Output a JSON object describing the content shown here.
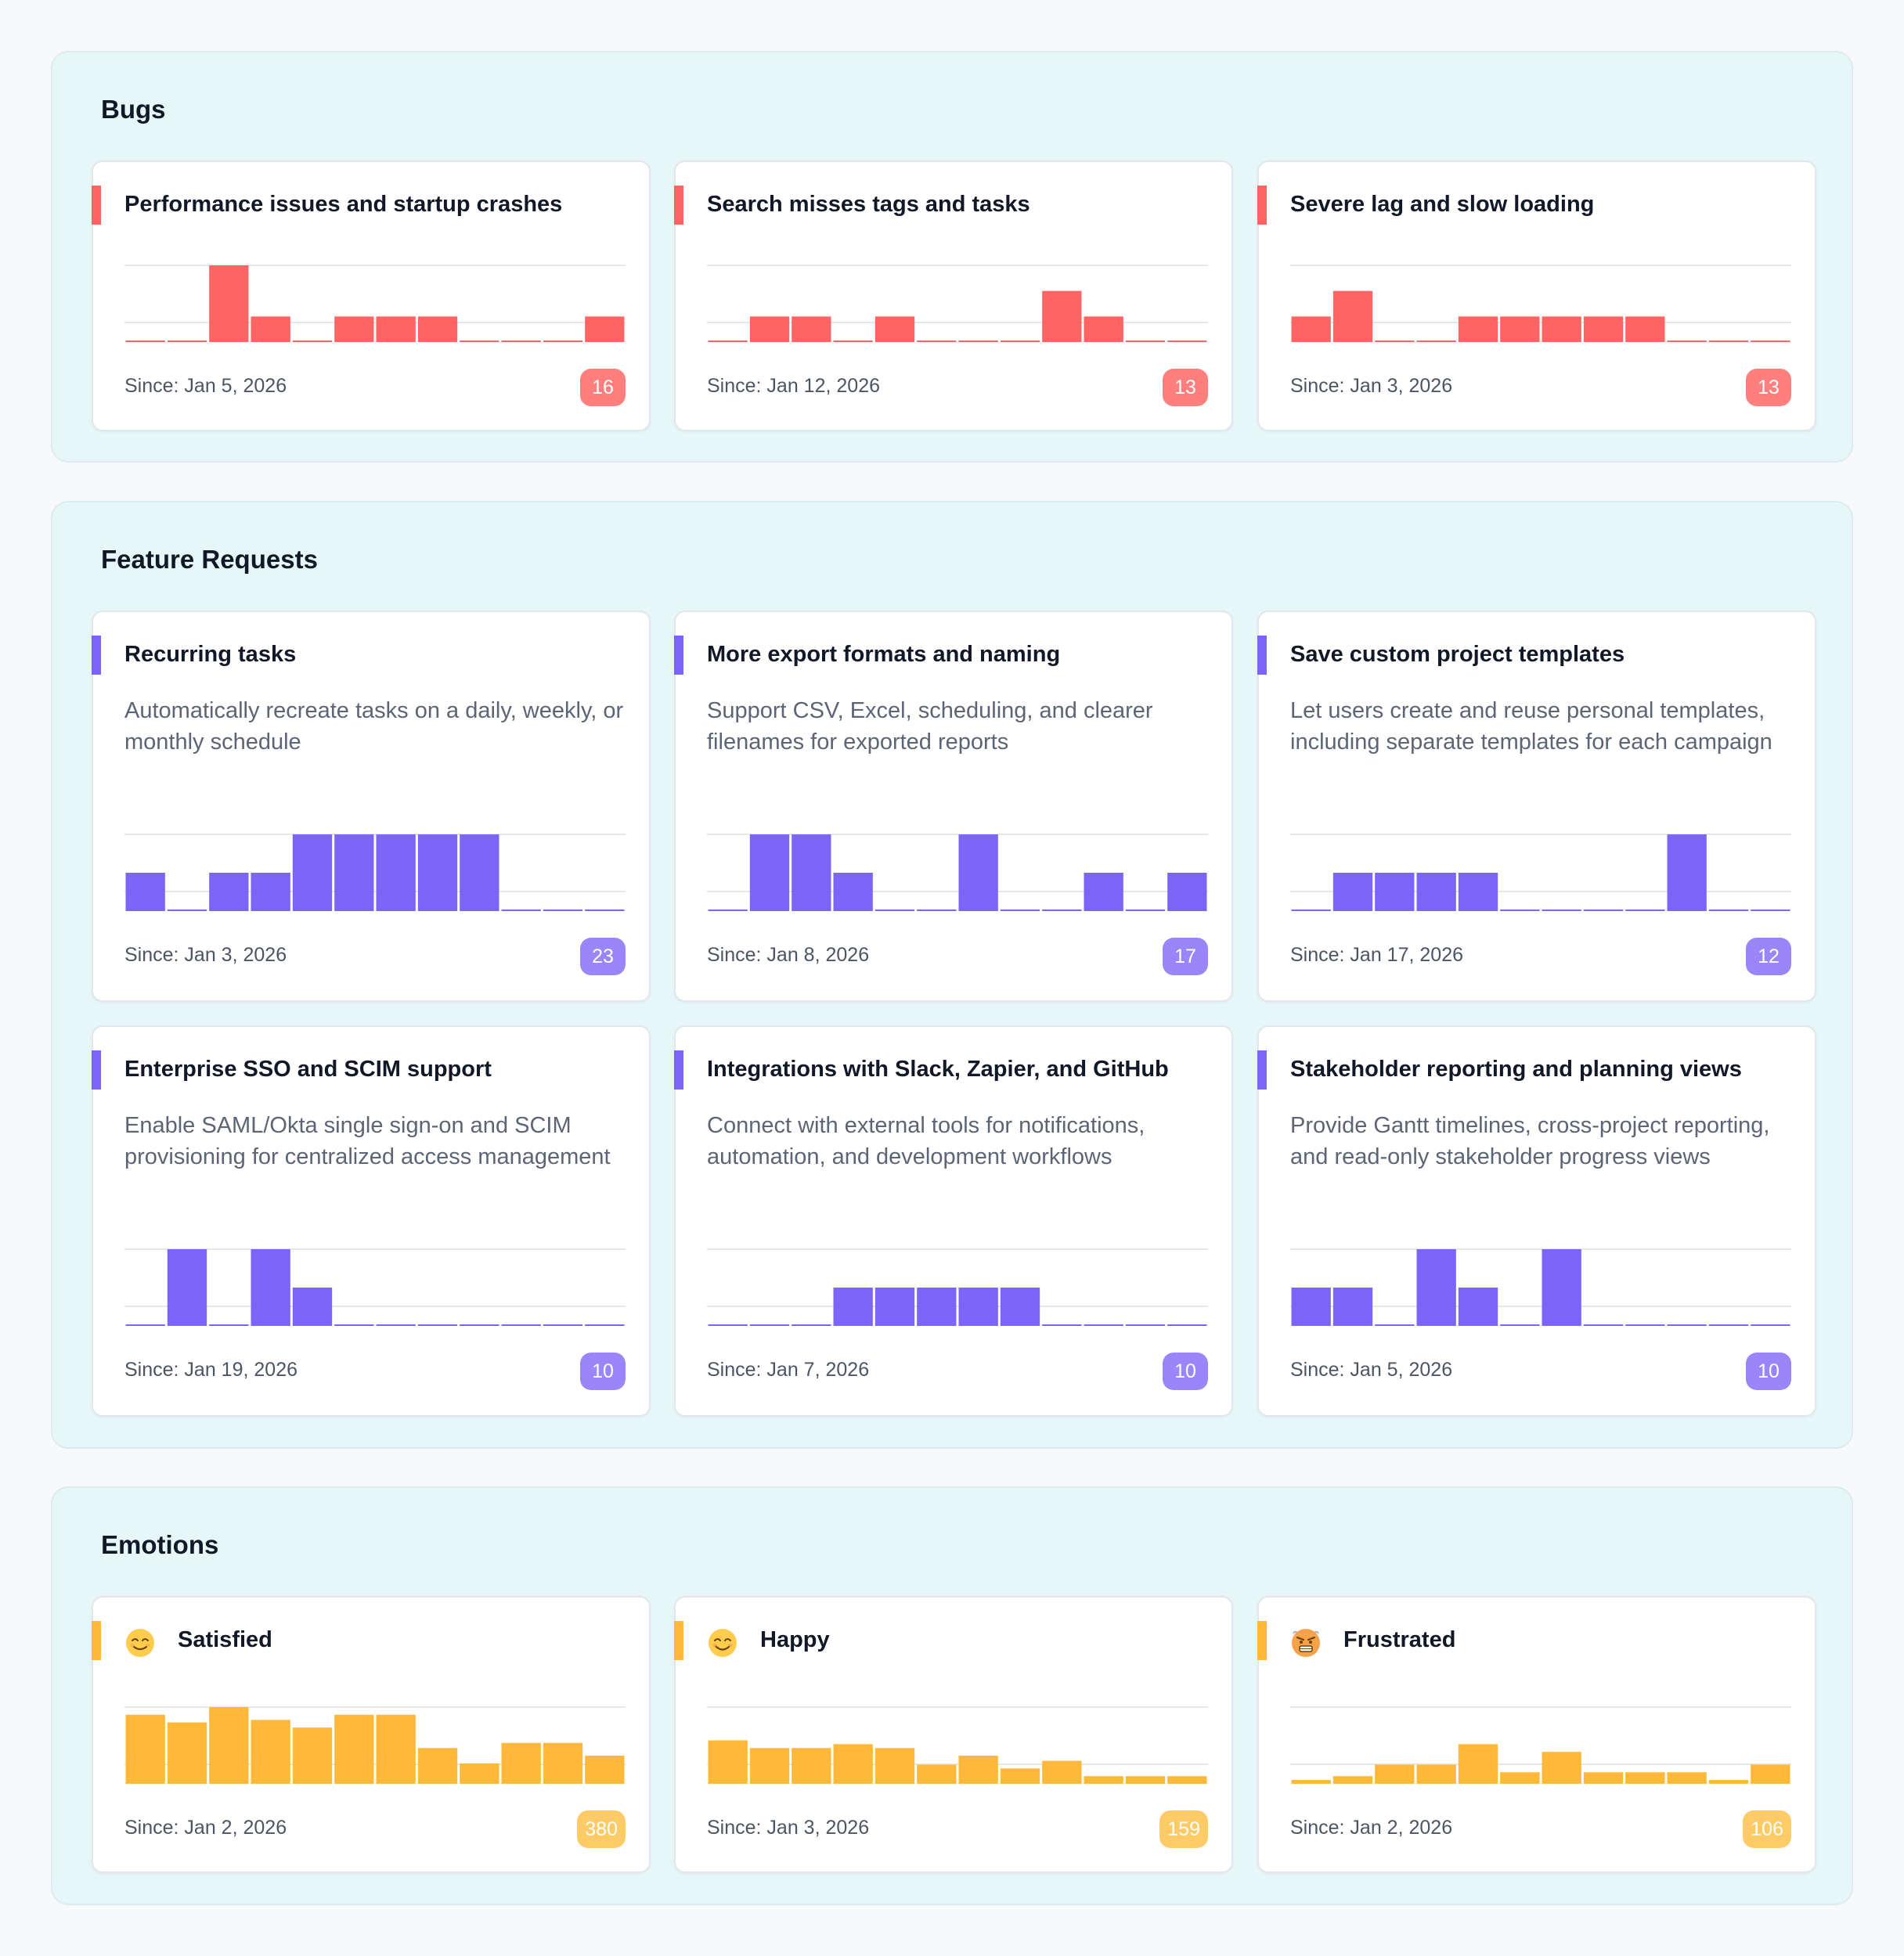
{
  "colors": {
    "bug": "#ff6464",
    "bug_badge": "#ff7f7f",
    "feature": "#7c64f8",
    "feature_badge": "#9a86fa",
    "emotion": "#ffb83a",
    "emotion_badge": "#ffcb66"
  },
  "sections": [
    {
      "title": "Bugs",
      "color": "#ff6464",
      "badge_color": "#ff7f7f",
      "cards": [
        {
          "title": "Performance issues and startup crashes",
          "description": "",
          "since": "Since: Jan 5, 2026",
          "count": "16",
          "emoji": "",
          "chart_data": {
            "type": "bar",
            "values": [
              0,
              0,
              6,
              2,
              0,
              2,
              2,
              2,
              0,
              0,
              0,
              2
            ],
            "ylim": [
              0,
              6
            ]
          }
        },
        {
          "title": "Search misses tags and tasks",
          "description": "",
          "since": "Since: Jan 12, 2026",
          "count": "13",
          "emoji": "",
          "chart_data": {
            "type": "bar",
            "values": [
              0,
              2,
              2,
              0,
              2,
              0,
              0,
              0,
              4,
              2,
              0,
              0
            ],
            "ylim": [
              0,
              6
            ]
          }
        },
        {
          "title": "Severe lag and slow loading",
          "description": "",
          "since": "Since: Jan 3, 2026",
          "count": "13",
          "emoji": "",
          "chart_data": {
            "type": "bar",
            "values": [
              2,
              4,
              0,
              0,
              2,
              2,
              2,
              2,
              2,
              0,
              0,
              0
            ],
            "ylim": [
              0,
              6
            ]
          }
        }
      ]
    },
    {
      "title": "Feature Requests",
      "color": "#7c64f8",
      "badge_color": "#9a86fa",
      "cards": [
        {
          "title": "Recurring tasks",
          "description": "Automatically recreate tasks on a daily, weekly, or monthly schedule",
          "since": "Since: Jan 3, 2026",
          "count": "23",
          "emoji": "",
          "chart_data": {
            "type": "bar",
            "values": [
              1,
              0,
              1,
              1,
              2,
              2,
              2,
              2,
              2,
              0,
              0,
              0
            ],
            "ylim": [
              0,
              2
            ]
          }
        },
        {
          "title": "More export formats and naming",
          "description": "Support CSV, Excel, scheduling, and clearer filenames for exported reports",
          "since": "Since: Jan 8, 2026",
          "count": "17",
          "emoji": "",
          "chart_data": {
            "type": "bar",
            "values": [
              0,
              2,
              2,
              1,
              0,
              0,
              2,
              0,
              0,
              1,
              0,
              1
            ],
            "ylim": [
              0,
              2
            ]
          }
        },
        {
          "title": "Save custom project templates",
          "description": "Let users create and reuse personal templates, including separate templates for each campaign",
          "since": "Since: Jan 17, 2026",
          "count": "12",
          "emoji": "",
          "chart_data": {
            "type": "bar",
            "values": [
              0,
              1,
              1,
              1,
              1,
              0,
              0,
              0,
              0,
              2,
              0,
              0
            ],
            "ylim": [
              0,
              2
            ]
          }
        },
        {
          "title": "Enterprise SSO and SCIM support",
          "description": "Enable SAML/Okta single sign-on and SCIM provisioning for centralized access management",
          "since": "Since: Jan 19, 2026",
          "count": "10",
          "emoji": "",
          "chart_data": {
            "type": "bar",
            "values": [
              0,
              2,
              0,
              2,
              1,
              0,
              0,
              0,
              0,
              0,
              0,
              0
            ],
            "ylim": [
              0,
              2
            ]
          }
        },
        {
          "title": "Integrations with Slack, Zapier, and GitHub",
          "description": "Connect with external tools for notifications, automation, and development workflows",
          "since": "Since: Jan 7, 2026",
          "count": "10",
          "emoji": "",
          "chart_data": {
            "type": "bar",
            "values": [
              0,
              0,
              0,
              1,
              1,
              1,
              1,
              1,
              0,
              0,
              0,
              0
            ],
            "ylim": [
              0,
              2
            ]
          }
        },
        {
          "title": "Stakeholder reporting and planning views",
          "description": "Provide Gantt timelines, cross-project reporting, and read-only stakeholder progress views",
          "since": "Since: Jan 5, 2026",
          "count": "10",
          "emoji": "",
          "chart_data": {
            "type": "bar",
            "values": [
              1,
              1,
              0,
              2,
              1,
              0,
              2,
              0,
              0,
              0,
              0,
              0
            ],
            "ylim": [
              0,
              2
            ]
          }
        }
      ]
    },
    {
      "title": "Emotions",
      "color": "#ffb83a",
      "badge_color": "#ffcb66",
      "cards": [
        {
          "title": "Satisfied",
          "description": "",
          "since": "Since: Jan 2, 2026",
          "count": "380",
          "emoji": "satisfied-face-icon",
          "chart_data": {
            "type": "bar",
            "values": [
              54,
              48,
              60,
              50,
              44,
              54,
              54,
              28,
              16,
              32,
              32,
              22
            ],
            "ylim": [
              0,
              60
            ]
          }
        },
        {
          "title": "Happy",
          "description": "",
          "since": "Since: Jan 3, 2026",
          "count": "159",
          "emoji": "happy-face-icon",
          "chart_data": {
            "type": "bar",
            "values": [
              34,
              28,
              28,
              31,
              28,
              15,
              22,
              12,
              18,
              6,
              6,
              6
            ],
            "ylim": [
              0,
              60
            ]
          }
        },
        {
          "title": "Frustrated",
          "description": "",
          "since": "Since: Jan 2, 2026",
          "count": "106",
          "emoji": "frustrated-face-icon",
          "chart_data": {
            "type": "bar",
            "values": [
              3,
              6,
              15,
              15,
              31,
              9,
              25,
              9,
              9,
              9,
              3,
              15
            ],
            "ylim": [
              0,
              60
            ]
          }
        }
      ]
    }
  ]
}
